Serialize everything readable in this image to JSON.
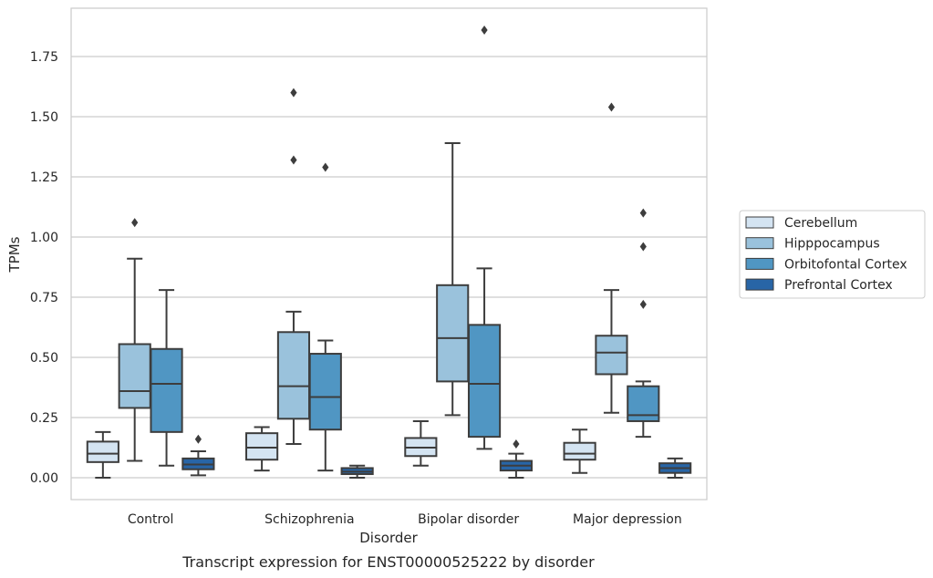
{
  "chart_data": {
    "type": "box",
    "title": "Transcript expression for ENST00000525222 by disorder",
    "xlabel": "Disorder",
    "ylabel": "TPMs",
    "ylim": [
      -0.09,
      1.95
    ],
    "yticks": [
      "0.00",
      "0.25",
      "0.50",
      "0.75",
      "1.00",
      "1.25",
      "1.50",
      "1.75"
    ],
    "grid": "horizontal",
    "legend_position": "right",
    "categories": [
      "Control",
      "Schizophrenia",
      "Bipolar disorder",
      "Major depression"
    ],
    "series": [
      {
        "name": "Cerebellum",
        "color": "#d4e4f2",
        "boxes": [
          {
            "whisker_low": 0.0,
            "q1": 0.065,
            "median": 0.1,
            "q3": 0.15,
            "whisker_high": 0.19,
            "outliers": []
          },
          {
            "whisker_low": 0.03,
            "q1": 0.075,
            "median": 0.125,
            "q3": 0.185,
            "whisker_high": 0.21,
            "outliers": []
          },
          {
            "whisker_low": 0.05,
            "q1": 0.09,
            "median": 0.125,
            "q3": 0.165,
            "whisker_high": 0.235,
            "outliers": []
          },
          {
            "whisker_low": 0.02,
            "q1": 0.075,
            "median": 0.1,
            "q3": 0.145,
            "whisker_high": 0.2,
            "outliers": []
          }
        ]
      },
      {
        "name": "Hipppocampus",
        "color": "#9ac2dc",
        "boxes": [
          {
            "whisker_low": 0.07,
            "q1": 0.29,
            "median": 0.36,
            "q3": 0.555,
            "whisker_high": 0.91,
            "outliers": [
              1.06
            ]
          },
          {
            "whisker_low": 0.14,
            "q1": 0.245,
            "median": 0.38,
            "q3": 0.605,
            "whisker_high": 0.69,
            "outliers": [
              1.32,
              1.6
            ]
          },
          {
            "whisker_low": 0.26,
            "q1": 0.4,
            "median": 0.58,
            "q3": 0.8,
            "whisker_high": 1.39,
            "outliers": []
          },
          {
            "whisker_low": 0.27,
            "q1": 0.43,
            "median": 0.52,
            "q3": 0.59,
            "whisker_high": 0.78,
            "outliers": [
              1.54
            ]
          }
        ]
      },
      {
        "name": "Orbitofontal Cortex",
        "color": "#5096c3",
        "boxes": [
          {
            "whisker_low": 0.05,
            "q1": 0.19,
            "median": 0.39,
            "q3": 0.535,
            "whisker_high": 0.78,
            "outliers": []
          },
          {
            "whisker_low": 0.03,
            "q1": 0.2,
            "median": 0.335,
            "q3": 0.515,
            "whisker_high": 0.57,
            "outliers": [
              1.29
            ]
          },
          {
            "whisker_low": 0.12,
            "q1": 0.17,
            "median": 0.39,
            "q3": 0.635,
            "whisker_high": 0.87,
            "outliers": [
              1.86
            ]
          },
          {
            "whisker_low": 0.17,
            "q1": 0.235,
            "median": 0.26,
            "q3": 0.38,
            "whisker_high": 0.4,
            "outliers": [
              0.72,
              0.96,
              1.1
            ]
          }
        ]
      },
      {
        "name": "Prefrontal Cortex",
        "color": "#2865a6",
        "boxes": [
          {
            "whisker_low": 0.01,
            "q1": 0.035,
            "median": 0.055,
            "q3": 0.08,
            "whisker_high": 0.11,
            "outliers": [
              0.16
            ]
          },
          {
            "whisker_low": 0.0,
            "q1": 0.015,
            "median": 0.025,
            "q3": 0.04,
            "whisker_high": 0.05,
            "outliers": []
          },
          {
            "whisker_low": 0.0,
            "q1": 0.03,
            "median": 0.05,
            "q3": 0.07,
            "whisker_high": 0.1,
            "outliers": [
              0.14
            ]
          },
          {
            "whisker_low": 0.0,
            "q1": 0.02,
            "median": 0.04,
            "q3": 0.06,
            "whisker_high": 0.08,
            "outliers": []
          }
        ]
      }
    ]
  }
}
